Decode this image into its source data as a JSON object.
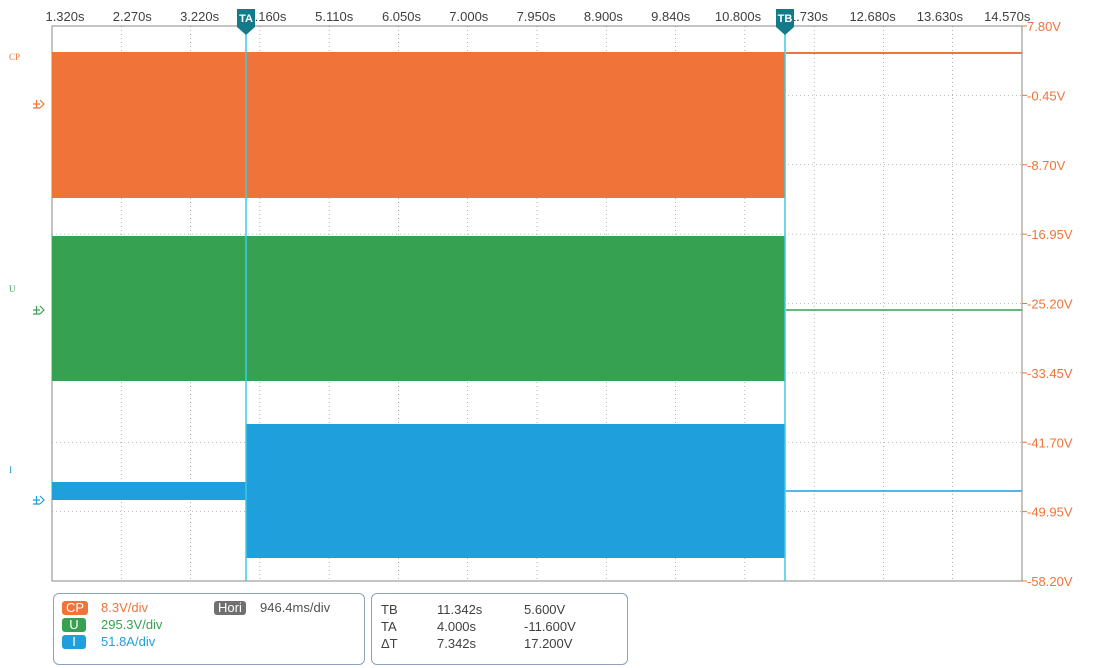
{
  "time_ticks": [
    "1.320s",
    "2.270s",
    "3.220s",
    "4.160s",
    "5.110s",
    "6.050s",
    "7.000s",
    "7.950s",
    "8.900s",
    "9.840s",
    "10.800s",
    "11.730s",
    "12.680s",
    "13.630s",
    "14.570s"
  ],
  "voltage_ticks": [
    "7.80V",
    "-0.45V",
    "-8.70V",
    "-16.95V",
    "-25.20V",
    "-33.45V",
    "-41.70V",
    "-49.95V",
    "-58.20V"
  ],
  "markers": {
    "a": "TA",
    "b": "TB"
  },
  "channels": [
    {
      "id": "CP",
      "label": "CP",
      "scale": "8.3V/div",
      "color": "#f0733a",
      "text_color": "#f0733a"
    },
    {
      "id": "U",
      "label": "U",
      "scale": "295.3V/div",
      "color": "#36a151",
      "text_color": "#36a151"
    },
    {
      "id": "I",
      "label": "I",
      "scale": "51.8A/div",
      "color": "#1f9fdb",
      "text_color": "#1f9fdb"
    }
  ],
  "horizontal": {
    "label": "Hori",
    "scale": "946.4ms/div",
    "badge_color": "#707070"
  },
  "cursors": {
    "rows": [
      {
        "name": "TB",
        "time": "11.342s",
        "value": "5.600V"
      },
      {
        "name": "TA",
        "time": "4.000s",
        "value": "-11.600V"
      },
      {
        "name": "ΔT",
        "time": "7.342s",
        "value": "17.200V"
      }
    ]
  },
  "colors": {
    "grid": "#808080",
    "cursor_line": "#3ec9e8",
    "voltage_axis": "#f0733a",
    "marker_fill": "#137a8a"
  }
}
